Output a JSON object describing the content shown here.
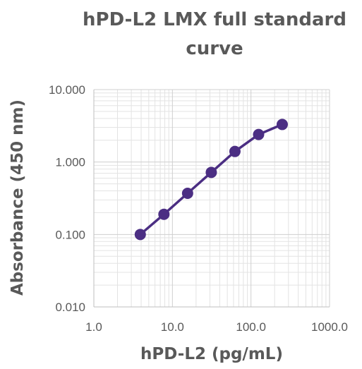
{
  "chart_data": {
    "type": "scatter",
    "title": "hPD-L2 LMX full standard curve",
    "xlabel": "hPD-L2 (pg/mL)",
    "ylabel": "Absorbance (450 nm)",
    "x_scale": "log",
    "y_scale": "log",
    "xlim": [
      1,
      1000
    ],
    "ylim": [
      0.01,
      10
    ],
    "x_ticks": [
      1,
      10,
      100,
      1000
    ],
    "x_tick_labels": [
      "1.0",
      "10.0",
      "100.0",
      "1000.0"
    ],
    "y_ticks": [
      0.01,
      0.1,
      1,
      10
    ],
    "y_tick_labels": [
      "0.010",
      "0.100",
      "1.000",
      "10.000"
    ],
    "grid": true,
    "legend": "none",
    "series": [
      {
        "x": [
          3.9,
          7.8,
          15.6,
          31.25,
          62.5,
          125,
          250
        ],
        "y": [
          0.1,
          0.19,
          0.37,
          0.72,
          1.4,
          2.4,
          3.3
        ],
        "color": "#4B2E83",
        "line": true,
        "marker": "circle"
      }
    ]
  }
}
